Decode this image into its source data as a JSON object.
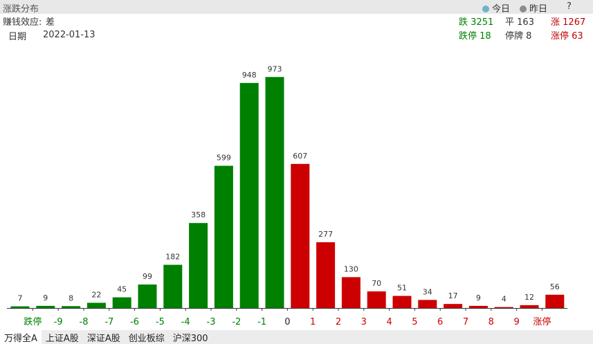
{
  "header": {
    "title": "涨跌分布",
    "legend": [
      {
        "label": "今日",
        "color": "#6fb3c8"
      },
      {
        "label": "昨日",
        "color": "#8c8c8c"
      }
    ],
    "help": "?"
  },
  "info": {
    "effect_label": "赚钱效应:",
    "effect_value": "差",
    "date_label": "日期",
    "date": "2022-01-13"
  },
  "stats": [
    {
      "label": "跌",
      "value": 3251,
      "color": "#008000"
    },
    {
      "label": "平",
      "value": 163,
      "color": "#333333"
    },
    {
      "label": "涨",
      "value": 1267,
      "color": "#c00000"
    },
    {
      "label": "跌停",
      "value": 18,
      "color": "#008000"
    },
    {
      "label": "停牌",
      "value": 8,
      "color": "#333333"
    },
    {
      "label": "涨停",
      "value": 63,
      "color": "#c00000"
    }
  ],
  "chart_data": {
    "type": "bar",
    "values": [
      7,
      9,
      8,
      22,
      45,
      99,
      182,
      358,
      599,
      948,
      973,
      607,
      277,
      130,
      70,
      51,
      34,
      17,
      9,
      4,
      12,
      56
    ],
    "colors": [
      "#008000",
      "#008000",
      "#008000",
      "#008000",
      "#008000",
      "#008000",
      "#008000",
      "#008000",
      "#008000",
      "#008000",
      "#008000",
      "#cc0000",
      "#cc0000",
      "#cc0000",
      "#cc0000",
      "#cc0000",
      "#cc0000",
      "#cc0000",
      "#cc0000",
      "#cc0000",
      "#cc0000",
      "#cc0000"
    ],
    "edge_labels": [
      "跌停",
      "-9",
      "-8",
      "-7",
      "-6",
      "-5",
      "-4",
      "-3",
      "-2",
      "-1",
      "0",
      "1",
      "2",
      "3",
      "4",
      "5",
      "6",
      "7",
      "8",
      "9",
      "涨停"
    ],
    "edge_label_colors": [
      "#008000",
      "#008000",
      "#008000",
      "#008000",
      "#008000",
      "#008000",
      "#008000",
      "#008000",
      "#008000",
      "#008000",
      "#222222",
      "#cc0000",
      "#cc0000",
      "#cc0000",
      "#cc0000",
      "#cc0000",
      "#cc0000",
      "#cc0000",
      "#cc0000",
      "#cc0000",
      "#cc0000"
    ],
    "ylim": [
      0,
      1000
    ]
  },
  "tabs": [
    "万得全A",
    "上证A股",
    "深证A股",
    "创业板综",
    "沪深300"
  ]
}
